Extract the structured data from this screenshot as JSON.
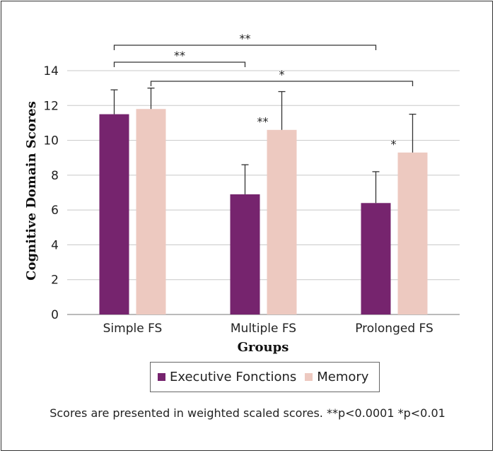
{
  "chart_data": {
    "type": "bar",
    "categories": [
      "Simple FS",
      "Multiple FS",
      "Prolonged FS"
    ],
    "series": [
      {
        "name": "Executive Fonctions",
        "color": "#76246E",
        "values": [
          11.5,
          6.9,
          6.4
        ],
        "errors": [
          1.4,
          1.7,
          1.8
        ]
      },
      {
        "name": "Memory",
        "color": "#EDC9C0",
        "values": [
          11.8,
          10.6,
          9.3
        ],
        "errors": [
          1.2,
          2.2,
          2.2
        ]
      }
    ],
    "ylim": [
      0,
      14
    ],
    "yticks": [
      0,
      2,
      4,
      6,
      8,
      10,
      12,
      14
    ],
    "xlabel": "Groups",
    "ylabel": "Cognitive Domain Scores",
    "grid": true,
    "legend_position": "bottom",
    "bar_annotations": [
      {
        "category": 1,
        "series": 1,
        "text": "**"
      },
      {
        "category": 2,
        "series": 1,
        "text": "*"
      }
    ],
    "brackets": [
      {
        "from_category": 0,
        "from_series": 0,
        "to_category": 2,
        "to_series": 0,
        "text": "**"
      },
      {
        "from_category": 0,
        "from_series": 0,
        "to_category": 1,
        "to_series": 0,
        "text": "**"
      },
      {
        "from_category": 0,
        "from_series": 1,
        "to_category": 2,
        "to_series": 1,
        "text": "*"
      }
    ]
  },
  "footnote": "Scores are presented in weighted scaled scores. **p<0.0001 *p<0.01"
}
